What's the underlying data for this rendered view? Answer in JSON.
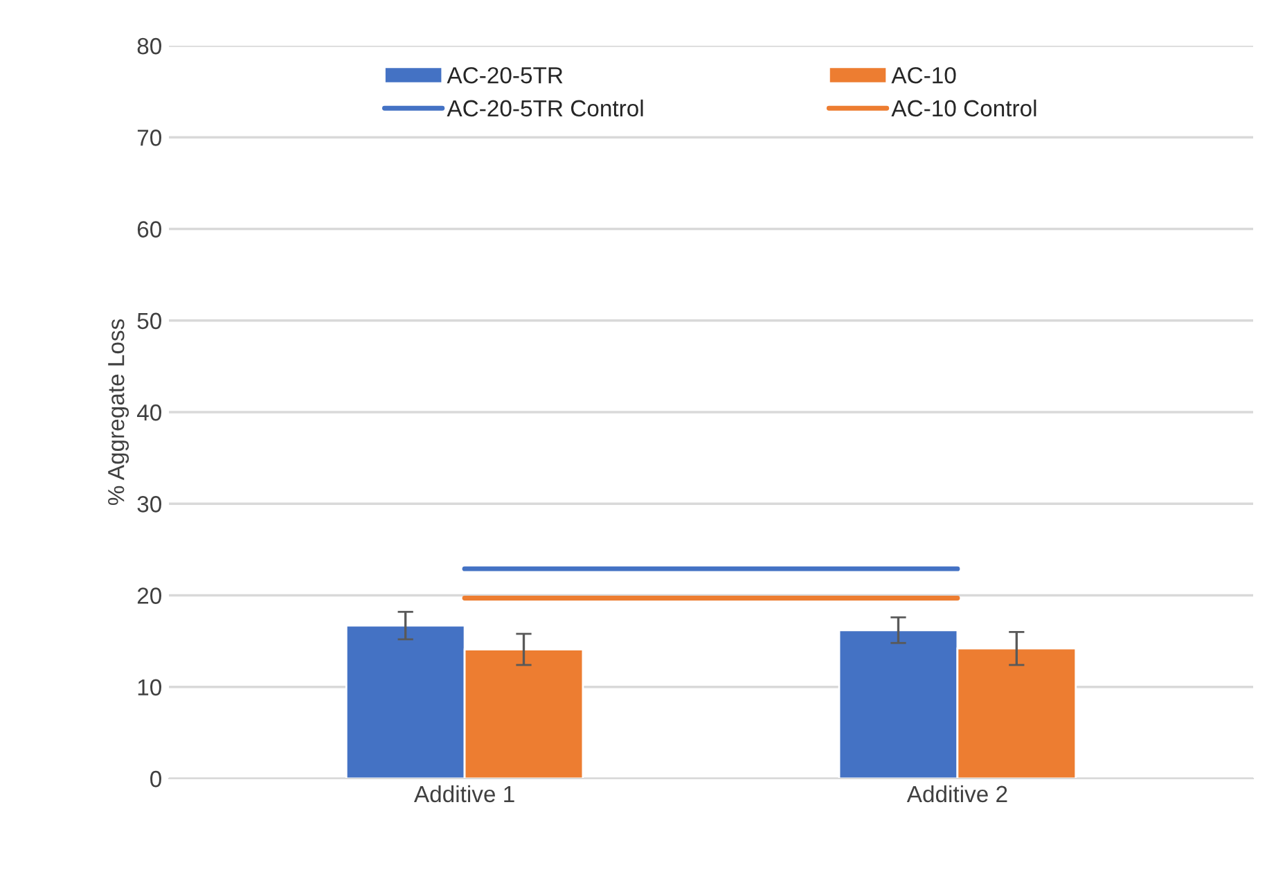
{
  "chart_data": {
    "type": "bar",
    "ylabel": "% Aggregate Loss",
    "categories": [
      "Additive 1",
      "Additive 2"
    ],
    "series": [
      {
        "name": "AC-20-5TR",
        "color": "#4472c4",
        "values": [
          16.7,
          16.2
        ],
        "errors": [
          1.5,
          1.4
        ]
      },
      {
        "name": "AC-10",
        "color": "#ed7d31",
        "values": [
          14.1,
          14.2
        ],
        "errors": [
          1.7,
          1.8
        ]
      }
    ],
    "ref_lines": [
      {
        "axis": "y",
        "value": 22.9,
        "label": "AC-20-5TR Control",
        "color": "#4472c4",
        "line_style": "solid"
      },
      {
        "axis": "y",
        "value": 19.7,
        "label": "AC-10 Control",
        "color": "#ed7d31",
        "line_style": "solid"
      }
    ],
    "ylim": [
      0,
      80
    ],
    "yticks": [
      0,
      10,
      20,
      30,
      40,
      50,
      60,
      70,
      80
    ],
    "grid": "y",
    "legend": "top"
  }
}
